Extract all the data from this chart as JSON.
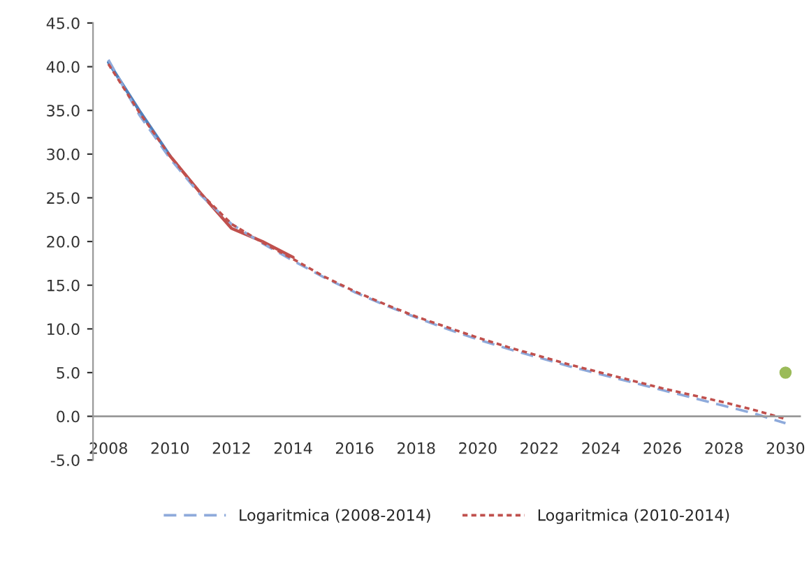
{
  "chart_data": {
    "type": "line",
    "x": [
      2008,
      2009,
      2010,
      2011,
      2012,
      2013,
      2014,
      2015,
      2016,
      2017,
      2018,
      2019,
      2020,
      2021,
      2022,
      2023,
      2024,
      2025,
      2026,
      2027,
      2028,
      2029,
      2030
    ],
    "series": [
      {
        "color": "#4f81bd",
        "line_style": "solid",
        "x": [
          2008,
          2009,
          2010
        ],
        "values": [
          40.5,
          35.0,
          29.8
        ]
      },
      {
        "color": "#c0504d",
        "line_style": "solid",
        "x": [
          2010,
          2011,
          2012,
          2013,
          2014
        ],
        "values": [
          29.8,
          25.5,
          21.5,
          20.0,
          18.2
        ]
      },
      {
        "name": "Logaritmica (2008-2014)",
        "color": "#8eaadb",
        "line_style": "dashed",
        "values": [
          40.8,
          34.5,
          29.5,
          25.3,
          22.0,
          19.8,
          17.8,
          15.9,
          14.2,
          12.7,
          11.3,
          10.0,
          8.8,
          7.7,
          6.7,
          5.7,
          4.8,
          3.9,
          3.0,
          2.1,
          1.2,
          0.3,
          -0.8
        ]
      },
      {
        "name": "Logaritmica (2010-2014)",
        "color": "#c0504d",
        "line_style": "dotted",
        "values": [
          40.3,
          34.8,
          29.8,
          25.5,
          22.0,
          19.9,
          18.0,
          16.0,
          14.3,
          12.8,
          11.4,
          10.2,
          9.0,
          7.9,
          6.9,
          5.9,
          5.0,
          4.1,
          3.2,
          2.4,
          1.6,
          0.7,
          -0.3
        ]
      },
      {
        "type": "scatter",
        "color": "#9bbb59",
        "marker": "circle",
        "x": [
          2030
        ],
        "values": [
          5.0
        ]
      }
    ],
    "xlim": [
      2007.5,
      2030.5
    ],
    "xticks": [
      2008,
      2010,
      2012,
      2014,
      2016,
      2018,
      2020,
      2022,
      2024,
      2026,
      2028,
      2030
    ],
    "ylim": [
      -5,
      45
    ],
    "yticks": [
      {
        "value": -5,
        "label": "-5.0"
      },
      {
        "value": 0,
        "label": "0.0"
      },
      {
        "value": 5,
        "label": "5.0"
      },
      {
        "value": 10,
        "label": "10.0"
      },
      {
        "value": 15,
        "label": "15.0"
      },
      {
        "value": 20,
        "label": "20.0"
      },
      {
        "value": 25,
        "label": "25.0"
      },
      {
        "value": 30,
        "label": "30.0"
      },
      {
        "value": 35,
        "label": "35.0"
      },
      {
        "value": 40,
        "label": "40.0"
      },
      {
        "value": 45,
        "label": "45.0"
      }
    ],
    "grid": false,
    "legend": "bottom"
  }
}
